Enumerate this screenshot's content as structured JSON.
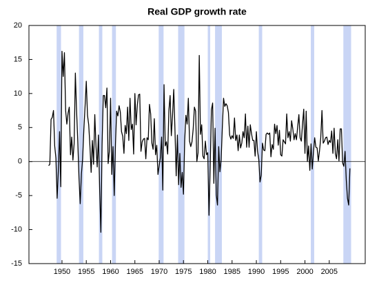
{
  "chart_data": {
    "type": "line",
    "title": "Real GDP growth rate",
    "color": "#000000",
    "recession_color": "#c9d5f5",
    "xlim": [
      1943.2,
      2012.4
    ],
    "ylim": [
      -15,
      20
    ],
    "xticks": [
      1950,
      1955,
      1960,
      1965,
      1970,
      1975,
      1980,
      1985,
      1990,
      1995,
      2000,
      2005
    ],
    "yticks": [
      20,
      15,
      10,
      5,
      0,
      -5,
      -10,
      -15
    ],
    "hline": 0,
    "recessions": [
      [
        1948.9,
        1949.8
      ],
      [
        1953.5,
        1954.4
      ],
      [
        1957.6,
        1958.3
      ],
      [
        1960.3,
        1961.1
      ],
      [
        1969.9,
        1970.9
      ],
      [
        1973.9,
        1975.2
      ],
      [
        1980.0,
        1980.5
      ],
      [
        1981.5,
        1982.9
      ],
      [
        1990.5,
        1991.2
      ],
      [
        2001.2,
        2001.9
      ],
      [
        2007.9,
        2009.5
      ]
    ],
    "x": [
      1947.25,
      1947.5,
      1947.75,
      1948,
      1948.25,
      1948.5,
      1948.75,
      1949,
      1949.25,
      1949.5,
      1949.75,
      1950,
      1950.25,
      1950.5,
      1950.75,
      1951,
      1951.25,
      1951.5,
      1951.75,
      1952,
      1952.25,
      1952.5,
      1952.75,
      1953,
      1953.25,
      1953.5,
      1953.75,
      1954,
      1954.25,
      1954.5,
      1954.75,
      1955,
      1955.25,
      1955.5,
      1955.75,
      1956,
      1956.25,
      1956.5,
      1956.75,
      1957,
      1957.25,
      1957.5,
      1957.75,
      1958,
      1958.25,
      1958.5,
      1958.75,
      1959,
      1959.25,
      1959.5,
      1959.75,
      1960,
      1960.25,
      1960.5,
      1960.75,
      1961,
      1961.25,
      1961.5,
      1961.75,
      1962,
      1962.25,
      1962.5,
      1962.75,
      1963,
      1963.25,
      1963.5,
      1963.75,
      1964,
      1964.25,
      1964.5,
      1964.75,
      1965,
      1965.25,
      1965.5,
      1965.75,
      1966,
      1966.25,
      1966.5,
      1966.75,
      1967,
      1967.25,
      1967.5,
      1967.75,
      1968,
      1968.25,
      1968.5,
      1968.75,
      1969,
      1969.25,
      1969.5,
      1969.75,
      1970,
      1970.25,
      1970.5,
      1970.75,
      1971,
      1971.25,
      1971.5,
      1971.75,
      1972,
      1972.25,
      1972.5,
      1972.75,
      1973,
      1973.25,
      1973.5,
      1973.75,
      1974,
      1974.25,
      1974.5,
      1974.75,
      1975,
      1975.25,
      1975.5,
      1975.75,
      1976,
      1976.25,
      1976.5,
      1976.75,
      1977,
      1977.25,
      1977.5,
      1977.75,
      1978,
      1978.25,
      1978.5,
      1978.75,
      1979,
      1979.25,
      1979.5,
      1979.75,
      1980,
      1980.25,
      1980.5,
      1980.75,
      1981,
      1981.25,
      1981.5,
      1981.75,
      1982,
      1982.25,
      1982.5,
      1982.75,
      1983,
      1983.25,
      1983.5,
      1983.75,
      1984,
      1984.25,
      1984.5,
      1984.75,
      1985,
      1985.25,
      1985.5,
      1985.75,
      1986,
      1986.25,
      1986.5,
      1986.75,
      1987,
      1987.25,
      1987.5,
      1987.75,
      1988,
      1988.25,
      1988.5,
      1988.75,
      1989,
      1989.25,
      1989.5,
      1989.75,
      1990,
      1990.25,
      1990.5,
      1990.75,
      1991,
      1991.25,
      1991.5,
      1991.75,
      1992,
      1992.25,
      1992.5,
      1992.75,
      1993,
      1993.25,
      1993.5,
      1993.75,
      1994,
      1994.25,
      1994.5,
      1994.75,
      1995,
      1995.25,
      1995.5,
      1995.75,
      1996,
      1996.25,
      1996.5,
      1996.75,
      1997,
      1997.25,
      1997.5,
      1997.75,
      1998,
      1998.25,
      1998.5,
      1998.75,
      1999,
      1999.25,
      1999.5,
      1999.75,
      2000,
      2000.25,
      2000.5,
      2000.75,
      2001,
      2001.25,
      2001.5,
      2001.75,
      2002,
      2002.25,
      2002.5,
      2002.75,
      2003,
      2003.25,
      2003.5,
      2003.75,
      2004,
      2004.25,
      2004.5,
      2004.75,
      2005,
      2005.25,
      2005.5,
      2005.75,
      2006,
      2006.25,
      2006.5,
      2006.75,
      2007,
      2007.25,
      2007.5,
      2007.75,
      2008,
      2008.25,
      2008.5,
      2008.75,
      2009,
      2009.25
    ],
    "values": [
      -0.6,
      -0.4,
      6.2,
      6.5,
      7.5,
      2.3,
      0.5,
      -5.4,
      -1.4,
      4.4,
      -3.7,
      16.2,
      12.5,
      16.0,
      7.5,
      5.5,
      7.1,
      8.0,
      1.0,
      3.6,
      0.2,
      2.6,
      13.0,
      7.5,
      3.0,
      -2.4,
      -6.2,
      -1.8,
      0.4,
      4.7,
      8.1,
      11.8,
      6.8,
      5.4,
      2.3,
      -1.6,
      3.1,
      -0.4,
      6.9,
      2.2,
      -0.8,
      3.9,
      -4.1,
      -10.4,
      2.5,
      9.7,
      9.7,
      7.9,
      10.8,
      -0.3,
      1.5,
      9.3,
      -1.9,
      2.2,
      -5.0,
      2.5,
      7.4,
      6.7,
      8.2,
      7.3,
      4.4,
      3.7,
      1.2,
      5.3,
      4.1,
      8.0,
      3.1,
      9.3,
      4.7,
      5.5,
      1.1,
      10.0,
      5.4,
      8.3,
      9.8,
      9.9,
      1.5,
      2.9,
      3.3,
      3.4,
      0.4,
      3.5,
      3.2,
      8.4,
      7.0,
      2.7,
      1.8,
      6.3,
      1.0,
      2.4,
      -1.9,
      -0.6,
      0.6,
      3.6,
      -4.2,
      11.3,
      2.3,
      2.9,
      1.1,
      7.5,
      9.7,
      3.8,
      6.8,
      10.6,
      4.6,
      -2.1,
      3.9,
      -3.4,
      1.2,
      -3.8,
      -1.6,
      -4.8,
      3.1,
      6.8,
      5.5,
      9.3,
      3.0,
      2.2,
      2.9,
      4.8,
      8.0,
      7.4,
      0.0,
      1.3,
      15.6,
      4.0,
      5.4,
      0.8,
      0.4,
      3.0,
      1.0,
      1.3,
      -7.9,
      -0.7,
      7.6,
      8.6,
      -3.2,
      4.9,
      -4.9,
      -6.4,
      2.2,
      -1.5,
      0.3,
      5.1,
      9.3,
      8.1,
      8.5,
      8.2,
      7.2,
      3.9,
      3.3,
      3.8,
      3.4,
      6.4,
      3.1,
      3.9,
      1.6,
      3.9,
      2.0,
      2.7,
      4.4,
      3.5,
      7.0,
      2.1,
      5.2,
      2.1,
      5.4,
      4.1,
      3.1,
      3.1,
      0.8,
      4.4,
      1.5,
      0.3,
      -3.0,
      -2.0,
      2.7,
      1.7,
      1.6,
      4.0,
      4.2,
      4.0,
      4.2,
      0.7,
      2.5,
      1.8,
      5.5,
      4.1,
      5.3,
      2.4,
      4.6,
      1.0,
      0.8,
      3.2,
      2.9,
      2.6,
      7.0,
      3.5,
      4.4,
      3.0,
      6.0,
      4.8,
      3.2,
      4.1,
      3.2,
      5.1,
      6.9,
      3.5,
      3.0,
      5.5,
      7.7,
      1.2,
      7.4,
      0.0,
      2.3,
      -1.3,
      2.6,
      -1.1,
      1.4,
      3.5,
      2.1,
      2.0,
      0.1,
      1.6,
      3.5,
      7.5,
      2.7,
      3.0,
      3.5,
      3.6,
      2.5,
      3.1,
      2.8,
      4.5,
      1.2,
      4.9,
      1.2,
      0.4,
      3.2,
      0.1,
      4.8,
      4.8,
      -0.2,
      -0.7,
      1.5,
      -2.7,
      -5.4,
      -6.4,
      -1.0
    ]
  }
}
